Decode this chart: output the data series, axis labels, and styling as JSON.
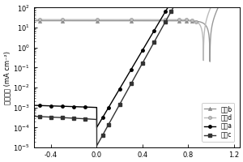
{
  "ylabel": "电流密度 (mA cm⁻²)",
  "xlim": [
    -0.55,
    1.25
  ],
  "ylim_log": [
    -5,
    2
  ],
  "xticks": [
    -0.4,
    0.0,
    0.4,
    0.8,
    1.2
  ],
  "xtick_labels": [
    "-0.4",
    "0.0",
    "0.4",
    "0.8",
    "1.2"
  ],
  "curve_a_color": "#000000",
  "curve_b_color": "#999999",
  "curve_c_color": "#333333",
  "curve_d_color": "#bbbbbb",
  "legend_labels": [
    "曲线a",
    "曲线b",
    "曲线c",
    "曲线d"
  ],
  "figsize": [
    3.0,
    2.0
  ],
  "dpi": 100
}
